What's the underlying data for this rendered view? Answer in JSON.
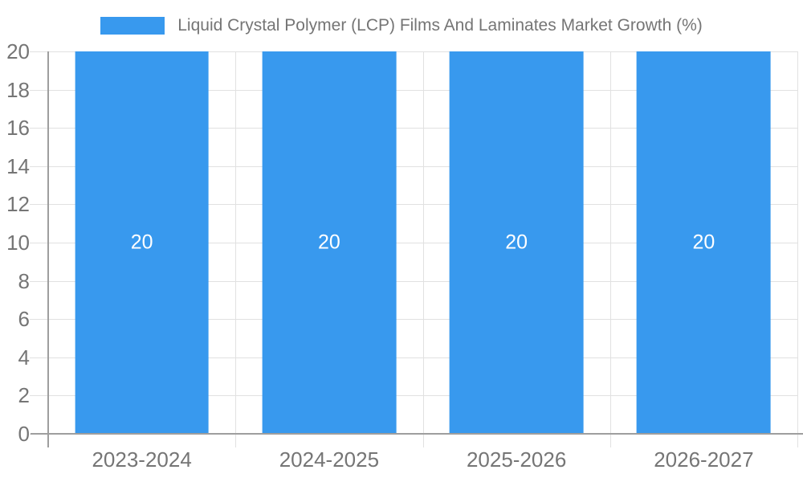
{
  "chart_data": {
    "type": "bar",
    "title": "Liquid Crystal Polymer (LCP) Films And Laminates Market Growth (%)",
    "categories": [
      "2023-2024",
      "2024-2025",
      "2025-2026",
      "2026-2027"
    ],
    "values": [
      20,
      20,
      20,
      20
    ],
    "bar_labels": [
      "20",
      "20",
      "20",
      "20"
    ],
    "xlabel": "",
    "ylabel": "",
    "ylim": [
      0,
      20
    ],
    "ytick_step": 2,
    "yticks": [
      0,
      2,
      4,
      6,
      8,
      10,
      12,
      14,
      16,
      18,
      20
    ],
    "grid": true,
    "legend_position": "top"
  },
  "colors": {
    "bar": "#3899ee",
    "grid": "#e1e1e1",
    "axis": "#9e9e9e",
    "text": "#757575",
    "bar_label": "#ffffff",
    "background": "#ffffff"
  }
}
